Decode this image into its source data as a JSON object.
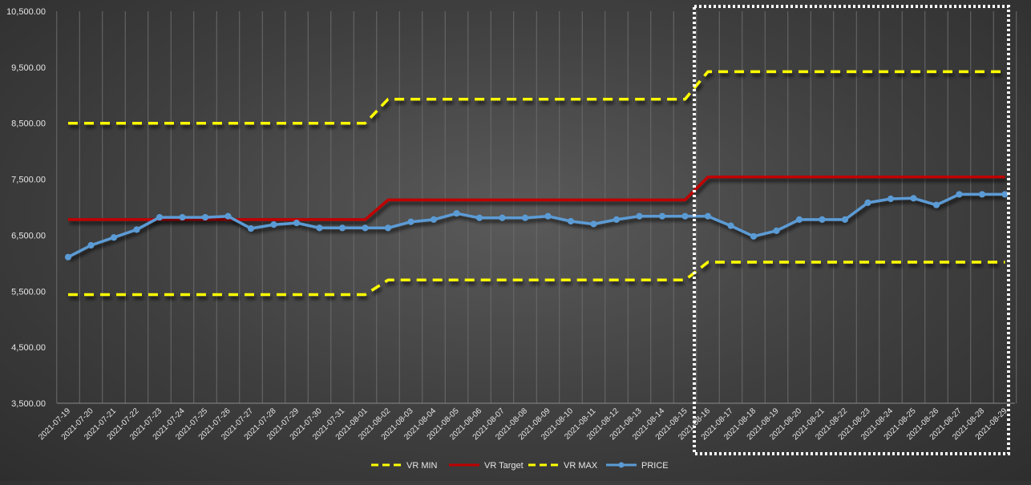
{
  "chart_data": {
    "type": "line",
    "title": "",
    "xlabel": "",
    "ylabel": "",
    "ylim": [
      3500,
      10500
    ],
    "yticks": [
      "3,500.00",
      "4,500.00",
      "5,500.00",
      "6,500.00",
      "7,500.00",
      "8,500.00",
      "9,500.00",
      "10,500.00"
    ],
    "ytick_values": [
      3500,
      4500,
      5500,
      6500,
      7500,
      8500,
      9500,
      10500
    ],
    "grid": "vertical",
    "legend_position": "bottom",
    "highlight": {
      "from": "2021-08-16",
      "to": "2021-08-29",
      "style": "white dotted box"
    },
    "x": [
      "2021-07-19",
      "2021-07-20",
      "2021-07-21",
      "2021-07-22",
      "2021-07-23",
      "2021-07-24",
      "2021-07-25",
      "2021-07-26",
      "2021-07-27",
      "2021-07-28",
      "2021-07-29",
      "2021-07-30",
      "2021-07-31",
      "2021-08-01",
      "2021-08-02",
      "2021-08-03",
      "2021-08-04",
      "2021-08-05",
      "2021-08-06",
      "2021-08-07",
      "2021-08-08",
      "2021-08-09",
      "2021-08-10",
      "2021-08-11",
      "2021-08-12",
      "2021-08-13",
      "2021-08-14",
      "2021-08-15",
      "2021-08-16",
      "2021-08-17",
      "2021-08-18",
      "2021-08-19",
      "2021-08-20",
      "2021-08-21",
      "2021-08-22",
      "2021-08-23",
      "2021-08-24",
      "2021-08-25",
      "2021-08-26",
      "2021-08-27",
      "2021-08-28",
      "2021-08-29"
    ],
    "series": [
      {
        "name": "VR MIN",
        "color": "#ffff00",
        "dash": true,
        "marker": false,
        "values": [
          5440,
          5440,
          5440,
          5440,
          5440,
          5440,
          5440,
          5440,
          5440,
          5440,
          5440,
          5440,
          5440,
          5440,
          5700,
          5700,
          5700,
          5700,
          5700,
          5700,
          5700,
          5700,
          5700,
          5700,
          5700,
          5700,
          5700,
          5700,
          6020,
          6020,
          6020,
          6020,
          6020,
          6020,
          6020,
          6020,
          6020,
          6020,
          6020,
          6020,
          6020,
          6020
        ]
      },
      {
        "name": "VR Target",
        "color": "#c00000",
        "dash": false,
        "marker": false,
        "values": [
          6780,
          6780,
          6780,
          6780,
          6780,
          6780,
          6780,
          6780,
          6780,
          6780,
          6780,
          6780,
          6780,
          6780,
          7130,
          7130,
          7130,
          7130,
          7130,
          7130,
          7130,
          7130,
          7130,
          7130,
          7130,
          7130,
          7130,
          7130,
          7540,
          7540,
          7540,
          7540,
          7540,
          7540,
          7540,
          7540,
          7540,
          7540,
          7540,
          7540,
          7540,
          7540
        ]
      },
      {
        "name": "VR MAX",
        "color": "#ffff00",
        "dash": true,
        "marker": false,
        "values": [
          8500,
          8500,
          8500,
          8500,
          8500,
          8500,
          8500,
          8500,
          8500,
          8500,
          8500,
          8500,
          8500,
          8500,
          8930,
          8930,
          8930,
          8930,
          8930,
          8930,
          8930,
          8930,
          8930,
          8930,
          8930,
          8930,
          8930,
          8930,
          9420,
          9420,
          9420,
          9420,
          9420,
          9420,
          9420,
          9420,
          9420,
          9420,
          9420,
          9420,
          9420,
          9420
        ]
      },
      {
        "name": "PRICE",
        "color": "#5b9bd5",
        "dash": false,
        "marker": true,
        "values": [
          6110,
          6320,
          6460,
          6600,
          6820,
          6820,
          6820,
          6840,
          6620,
          6690,
          6720,
          6630,
          6630,
          6630,
          6630,
          6740,
          6780,
          6890,
          6810,
          6810,
          6810,
          6840,
          6750,
          6700,
          6780,
          6840,
          6840,
          6840,
          6840,
          6670,
          6480,
          6580,
          6780,
          6780,
          6780,
          7080,
          7150,
          7160,
          7040,
          7230,
          7230,
          7230
        ]
      }
    ]
  }
}
